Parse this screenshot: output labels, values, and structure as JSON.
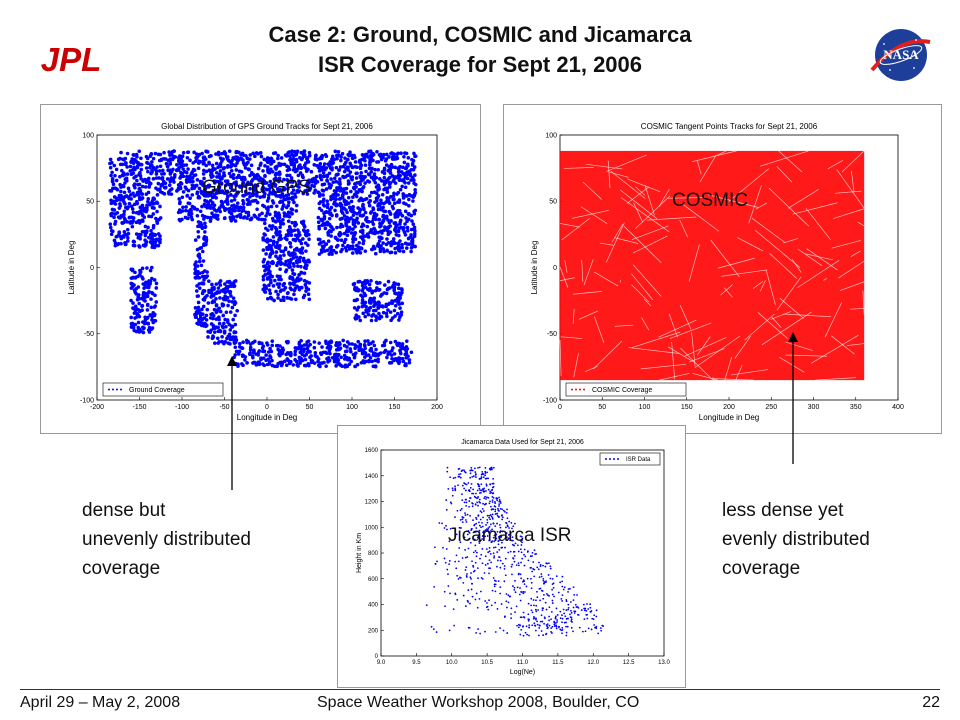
{
  "slide": {
    "title_line1": "Case 2: Ground, COSMIC and Jicamarca",
    "title_line2": "ISR Coverage for Sept 21, 2006",
    "logo_left": "JPL",
    "logo_right": "NASA",
    "footer_left": "April 29 – May 2, 2008",
    "footer_center": "Space Weather Workshop 2008, Boulder, CO",
    "footer_right": "22",
    "note_left": [
      "dense but",
      "unevenly distributed",
      "coverage"
    ],
    "note_right": [
      "less dense yet",
      "evenly distributed",
      "coverage"
    ],
    "accent_color": "#cc0000"
  },
  "chart_data": [
    {
      "type": "scatter",
      "title": "Global Distribution of GPS Ground Tracks for Sept 21, 2006",
      "overlay_label": "Ground GPS",
      "xlabel": "Longitude in Deg",
      "ylabel": "Latitude in Deg",
      "xlim": [
        -200,
        200
      ],
      "ylim": [
        -100,
        100
      ],
      "xticks": [
        -200,
        -150,
        -100,
        -50,
        0,
        50,
        100,
        150,
        200
      ],
      "yticks": [
        100,
        50,
        0,
        -50,
        -100
      ],
      "legend": "Ground Coverage",
      "legend_position": "lower-left",
      "color": "#0000ff",
      "coverage_regions": [
        {
          "x": [
            -185,
            175
          ],
          "y": [
            55,
            88
          ]
        },
        {
          "x": [
            -185,
            -125
          ],
          "y": [
            15,
            55
          ]
        },
        {
          "x": [
            -105,
            35
          ],
          "y": [
            35,
            55
          ]
        },
        {
          "x": [
            -85,
            -70
          ],
          "y": [
            -45,
            35
          ]
        },
        {
          "x": [
            -70,
            -35
          ],
          "y": [
            -58,
            -10
          ]
        },
        {
          "x": [
            -5,
            50
          ],
          "y": [
            -25,
            35
          ]
        },
        {
          "x": [
            60,
            175
          ],
          "y": [
            10,
            55
          ]
        },
        {
          "x": [
            100,
            160
          ],
          "y": [
            -40,
            -10
          ]
        },
        {
          "x": [
            -160,
            -130
          ],
          "y": [
            -50,
            0
          ]
        },
        {
          "x": [
            -40,
            170
          ],
          "y": [
            -75,
            -55
          ]
        }
      ]
    },
    {
      "type": "scatter",
      "title": "COSMIC Tangent Points Tracks for Sept 21, 2006",
      "overlay_label": "COSMIC",
      "xlabel": "Longitude in Deg",
      "ylabel": "Latitude in Deg",
      "xlim": [
        0,
        400
      ],
      "ylim": [
        -100,
        100
      ],
      "xticks": [
        0,
        50,
        100,
        150,
        200,
        250,
        300,
        350,
        400
      ],
      "yticks": [
        100,
        50,
        0,
        -50,
        -100
      ],
      "legend": "COSMIC Coverage",
      "legend_position": "lower-left",
      "color": "#ff0000",
      "coverage_regions": [
        {
          "x": [
            0,
            360
          ],
          "y": [
            -85,
            88
          ]
        }
      ]
    },
    {
      "type": "scatter",
      "title": "Jicamarca Data Used for Sept 21, 2006",
      "overlay_label": "Jicamarca ISR",
      "xlabel": "Log(Ne)",
      "ylabel": "Height in Km",
      "xlim": [
        9.0,
        13.0
      ],
      "ylim": [
        0,
        1600
      ],
      "xticks": [
        9.0,
        9.5,
        10.0,
        10.5,
        11.0,
        11.5,
        12.0,
        12.5,
        13.0
      ],
      "yticks": [
        1600,
        1400,
        1200,
        1000,
        800,
        600,
        400,
        200,
        0
      ],
      "legend": "ISR Data",
      "legend_position": "top-right",
      "color": "#0000ff",
      "profile": [
        {
          "height": 1420,
          "logne": [
            9.9,
            10.6
          ]
        },
        {
          "height": 1300,
          "logne": [
            9.9,
            10.6
          ]
        },
        {
          "height": 1200,
          "logne": [
            9.9,
            10.7
          ]
        },
        {
          "height": 1100,
          "logne": [
            9.9,
            10.8
          ]
        },
        {
          "height": 1000,
          "logne": [
            9.8,
            10.9
          ]
        },
        {
          "height": 900,
          "logne": [
            9.8,
            11.0
          ]
        },
        {
          "height": 800,
          "logne": [
            9.7,
            11.2
          ]
        },
        {
          "height": 700,
          "logne": [
            9.7,
            11.4
          ]
        },
        {
          "height": 600,
          "logne": [
            9.6,
            11.6
          ]
        },
        {
          "height": 500,
          "logne": [
            9.6,
            11.8
          ]
        },
        {
          "height": 400,
          "logne": [
            9.6,
            12.0
          ]
        },
        {
          "height": 330,
          "logne": [
            10.5,
            12.05
          ]
        },
        {
          "height": 260,
          "logne": [
            10.8,
            11.7
          ]
        },
        {
          "height": 200,
          "logne": [
            9.5,
            12.2
          ]
        }
      ]
    }
  ]
}
